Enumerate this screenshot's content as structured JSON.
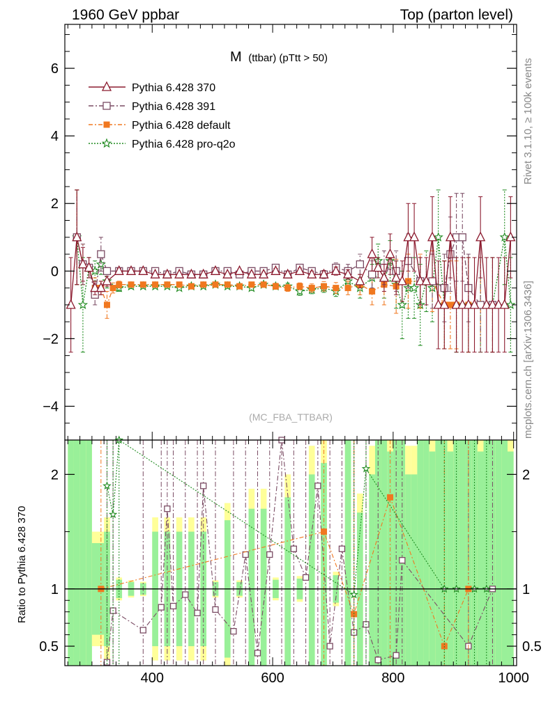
{
  "header": {
    "left": "1960 GeV ppbar",
    "right": "Top (parton level)"
  },
  "side_labels": {
    "rivet": "Rivet 3.1.10, ≥ 100k events",
    "mcplots": "mcplots.cern.ch [arXiv:1306.3436]"
  },
  "chart_data": [
    {
      "type": "line",
      "title_main": "M",
      "title_sub": "(ttbar) (pTtt > 50)",
      "watermark": "(MC_FBA_TTBAR)",
      "xlim": [
        255,
        1005
      ],
      "ylim": [
        -5,
        7.3
      ],
      "yticks": [
        -4,
        -2,
        0,
        2,
        4,
        6
      ],
      "ytick_labels": [
        "−4",
        "−2",
        "0",
        "2",
        "4",
        "6"
      ],
      "legend_position": "top-left",
      "series": [
        {
          "name": "Pythia 6.428 370",
          "color": "#8b1a2e",
          "marker": "triangle",
          "x": [
            265,
            275,
            285,
            295,
            305,
            315,
            325,
            345,
            365,
            385,
            405,
            425,
            445,
            465,
            485,
            505,
            525,
            545,
            565,
            585,
            605,
            625,
            645,
            665,
            685,
            705,
            725,
            745,
            765,
            775,
            785,
            795,
            805,
            815,
            825,
            835,
            845,
            855,
            865,
            875,
            885,
            895,
            905,
            915,
            925,
            935,
            945,
            955,
            965,
            975,
            985,
            995
          ],
          "y": [
            -1.0,
            1.0,
            0.2,
            0.1,
            -0.5,
            -0.5,
            -0.3,
            0.0,
            0.0,
            0.0,
            -0.1,
            -0.1,
            -0.1,
            -0.1,
            -0.1,
            0.0,
            -0.1,
            0.0,
            -0.1,
            -0.1,
            0.0,
            -0.1,
            0.0,
            -0.1,
            -0.1,
            0.0,
            -0.1,
            -0.3,
            0.5,
            0.1,
            -0.2,
            0.5,
            -0.2,
            -0.3,
            1.0,
            1.0,
            -0.3,
            -0.3,
            1.0,
            -1.0,
            -1.0,
            1.0,
            -1.0,
            -1.0,
            -1.0,
            -1.0,
            1.0,
            -1.0,
            -1.0,
            -1.0,
            -1.0,
            1.0
          ],
          "yerr": [
            1.4,
            1.4,
            0.5,
            0.3,
            0.2,
            0.2,
            0.15,
            0.08,
            0.06,
            0.05,
            0.05,
            0.05,
            0.05,
            0.05,
            0.05,
            0.06,
            0.06,
            0.06,
            0.07,
            0.07,
            0.08,
            0.08,
            0.09,
            0.1,
            0.11,
            0.12,
            0.14,
            0.2,
            0.5,
            0.3,
            0.4,
            0.6,
            0.5,
            0.6,
            1.0,
            1.0,
            0.7,
            0.7,
            1.2,
            1.3,
            1.3,
            1.2,
            1.4,
            1.4,
            1.4,
            1.4,
            1.2,
            1.4,
            1.4,
            1.4,
            1.4,
            1.2
          ]
        },
        {
          "name": "Pythia 6.428 391",
          "color": "#7a4b63",
          "marker": "square",
          "x": [
            275,
            285,
            295,
            305,
            315,
            325,
            345,
            365,
            385,
            405,
            425,
            445,
            465,
            485,
            505,
            525,
            545,
            565,
            585,
            605,
            625,
            645,
            665,
            685,
            705,
            725,
            745,
            765,
            785,
            805,
            825,
            845,
            865,
            885,
            895,
            905,
            915,
            925,
            945,
            965
          ],
          "y": [
            1.0,
            0.2,
            0.1,
            -0.7,
            0.5,
            0.0,
            0.0,
            0.0,
            0.0,
            0.0,
            -0.1,
            0.0,
            -0.1,
            -0.1,
            0.0,
            0.0,
            -0.1,
            0.0,
            0.0,
            0.1,
            -0.1,
            0.1,
            0.0,
            -0.1,
            0.1,
            0.0,
            0.2,
            -0.1,
            0.1,
            0.0,
            0.3,
            -0.3,
            -0.3,
            -0.5,
            0.5,
            1.0,
            1.0,
            -0.5,
            -1.0,
            -1.0
          ],
          "yerr": [
            1.4,
            0.6,
            0.3,
            0.3,
            0.5,
            0.1,
            0.08,
            0.06,
            0.05,
            0.05,
            0.05,
            0.05,
            0.05,
            0.05,
            0.06,
            0.06,
            0.06,
            0.07,
            0.07,
            0.08,
            0.08,
            0.1,
            0.1,
            0.12,
            0.14,
            0.2,
            0.3,
            0.4,
            0.5,
            0.6,
            0.8,
            0.7,
            0.8,
            1.0,
            1.1,
            1.3,
            1.3,
            1.0,
            1.4,
            1.4
          ]
        },
        {
          "name": "Pythia 6.428 default",
          "color": "#f07820",
          "marker": "square-filled",
          "x": [
            275,
            285,
            295,
            305,
            315,
            325,
            335,
            345,
            365,
            385,
            405,
            425,
            445,
            465,
            485,
            505,
            525,
            545,
            565,
            585,
            605,
            625,
            645,
            665,
            685,
            705,
            725,
            745,
            765,
            785,
            805,
            825,
            845,
            865,
            885,
            895,
            905,
            925,
            945,
            965
          ],
          "y": [
            1.0,
            0.2,
            0.1,
            -0.5,
            -0.5,
            -1.0,
            -0.5,
            -0.4,
            -0.4,
            -0.4,
            -0.4,
            -0.4,
            -0.4,
            -0.45,
            -0.4,
            -0.4,
            -0.4,
            -0.45,
            -0.4,
            -0.4,
            -0.45,
            -0.5,
            -0.45,
            -0.5,
            -0.45,
            -0.5,
            -0.5,
            -0.4,
            -0.6,
            -0.4,
            -0.45,
            -0.3,
            -0.3,
            -0.3,
            -1.0,
            -1.0,
            -1.0,
            -1.0,
            -1.0,
            -1.0
          ],
          "yerr": [
            1.4,
            0.6,
            0.3,
            0.3,
            0.2,
            0.4,
            0.15,
            0.1,
            0.07,
            0.06,
            0.05,
            0.05,
            0.05,
            0.05,
            0.06,
            0.06,
            0.06,
            0.07,
            0.07,
            0.08,
            0.09,
            0.1,
            0.1,
            0.12,
            0.14,
            0.16,
            0.2,
            0.3,
            0.4,
            0.6,
            0.8,
            0.8,
            0.8,
            0.9,
            1.3,
            1.3,
            1.3,
            1.4,
            1.4,
            1.4
          ]
        },
        {
          "name": "Pythia 6.428 pro-q2o",
          "color": "#1e8a1e",
          "marker": "star",
          "x": [
            275,
            285,
            295,
            305,
            315,
            325,
            345,
            365,
            385,
            405,
            425,
            445,
            465,
            485,
            505,
            525,
            545,
            565,
            585,
            605,
            625,
            645,
            665,
            685,
            705,
            725,
            745,
            765,
            775,
            785,
            795,
            805,
            815,
            825,
            835,
            845,
            855,
            865,
            875,
            885,
            905,
            925,
            945,
            965,
            985,
            995
          ],
          "y": [
            1.0,
            -1.0,
            0.1,
            0.0,
            0.2,
            -0.3,
            -0.5,
            -0.45,
            -0.45,
            -0.45,
            -0.45,
            -0.5,
            -0.45,
            -0.45,
            -0.4,
            -0.45,
            -0.45,
            -0.5,
            -0.4,
            -0.45,
            -0.45,
            -0.6,
            -0.55,
            -0.5,
            -0.6,
            -0.3,
            -0.5,
            -0.2,
            0.3,
            -0.3,
            0.3,
            -0.4,
            -1.0,
            -0.5,
            -0.5,
            -1.0,
            -0.3,
            -0.5,
            1.0,
            -1.0,
            -1.0,
            -1.0,
            -1.0,
            -1.0,
            1.0,
            -1.0
          ],
          "yerr": [
            1.4,
            1.4,
            0.3,
            0.3,
            0.3,
            0.2,
            0.1,
            0.07,
            0.06,
            0.05,
            0.05,
            0.05,
            0.05,
            0.05,
            0.06,
            0.06,
            0.06,
            0.07,
            0.07,
            0.08,
            0.09,
            0.12,
            0.12,
            0.13,
            0.15,
            0.2,
            0.3,
            0.4,
            0.5,
            0.5,
            0.6,
            0.7,
            1.0,
            0.9,
            0.9,
            1.2,
            0.9,
            1.0,
            1.4,
            1.3,
            1.4,
            1.4,
            1.4,
            1.4,
            1.4,
            1.4
          ]
        }
      ]
    },
    {
      "type": "line",
      "ylabel": "Ratio to Pythia 6.428 370",
      "xlim": [
        255,
        1005
      ],
      "ylim": [
        0.33,
        2.3
      ],
      "yticks": [
        0.5,
        1,
        2
      ],
      "ytick_labels": [
        "0.5",
        "1",
        "2"
      ],
      "xticks": [
        400,
        600,
        800,
        1000
      ],
      "xtick_labels": [
        "400",
        "600",
        "800",
        "1000"
      ],
      "reference_line": 1,
      "band_colors": {
        "inner": "#99f099",
        "outer": "#ffff99"
      },
      "series": [
        {
          "name": "Pythia 6.428 391",
          "color": "#7a4b63",
          "marker": "square",
          "x": [
            325,
            335,
            385,
            415,
            425,
            435,
            455,
            475,
            485,
            505,
            535,
            555,
            575,
            595,
            615,
            635,
            655,
            675,
            695,
            715,
            735,
            755,
            775,
            805,
            815,
            925,
            965
          ],
          "y": [
            0.36,
            0.81,
            0.64,
            0.84,
            1.7,
            0.85,
            0.95,
            0.79,
            1.9,
            0.82,
            0.63,
            1.3,
            0.44,
            1.3,
            2.3,
            1.35,
            1.1,
            1.9,
            0.5,
            1.35,
            0.62,
            0.69,
            0.38,
            0.42,
            1.25,
            0.5,
            1.0
          ]
        },
        {
          "name": "Pythia 6.428 default",
          "color": "#f07820",
          "marker": "square-filled",
          "x": [
            315,
            685,
            735,
            795,
            885,
            925
          ],
          "y": [
            1.0,
            1.5,
            0.78,
            1.8,
            0.5,
            1.0
          ]
        },
        {
          "name": "Pythia 6.428 pro-q2o",
          "color": "#1e8a1e",
          "marker": "star",
          "x": [
            325,
            335,
            345,
            735,
            755,
            885,
            905,
            935,
            955
          ],
          "y": [
            1.9,
            1.65,
            2.3,
            0.95,
            2.05,
            1.0,
            1.0,
            1.0,
            1.0
          ]
        }
      ]
    }
  ]
}
